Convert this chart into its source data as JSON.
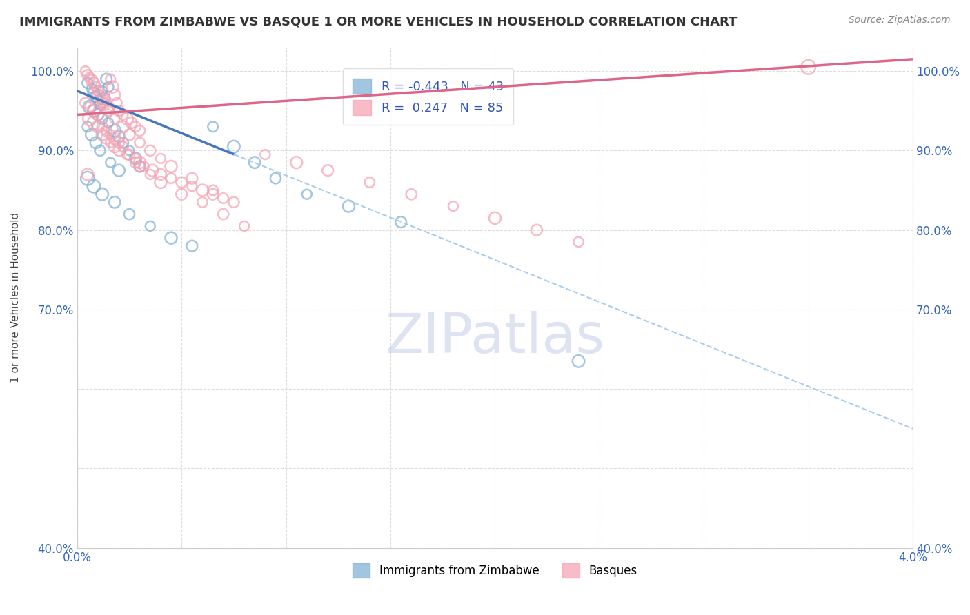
{
  "title": "IMMIGRANTS FROM ZIMBABWE VS BASQUE 1 OR MORE VEHICLES IN HOUSEHOLD CORRELATION CHART",
  "source": "Source: ZipAtlas.com",
  "ylabel": "1 or more Vehicles in Household",
  "xlim": [
    0.0,
    4.0
  ],
  "ylim": [
    40.0,
    103.0
  ],
  "xticks": [
    0.0,
    0.5,
    1.0,
    1.5,
    2.0,
    2.5,
    3.0,
    3.5,
    4.0
  ],
  "yticks": [
    40.0,
    50.0,
    60.0,
    70.0,
    80.0,
    90.0,
    100.0
  ],
  "xtick_labels": [
    "0.0%",
    "",
    "",
    "",
    "",
    "",
    "",
    "",
    "4.0%"
  ],
  "ytick_labels": [
    "40.0%",
    "",
    "",
    "70.0%",
    "80.0%",
    "90.0%",
    "100.0%"
  ],
  "blue_color": "#7BAFD4",
  "pink_color": "#F4A0B0",
  "blue_line_color": "#4477BB",
  "pink_line_color": "#DD6688",
  "dashed_color": "#AACCEE",
  "blue_label": "Immigrants from Zimbabwe",
  "pink_label": "Basques",
  "blue_R": -0.443,
  "blue_N": 43,
  "pink_R": 0.247,
  "pink_N": 85,
  "watermark": "ZIPatlas",
  "watermark_color": "#AABBDD",
  "blue_scatter_x": [
    0.05,
    0.07,
    0.08,
    0.09,
    0.1,
    0.11,
    0.12,
    0.13,
    0.14,
    0.15,
    0.06,
    0.08,
    0.1,
    0.12,
    0.15,
    0.18,
    0.2,
    0.22,
    0.25,
    0.28,
    0.3,
    0.05,
    0.07,
    0.09,
    0.11,
    0.16,
    0.2,
    0.05,
    0.08,
    0.12,
    0.18,
    0.25,
    0.35,
    0.45,
    0.55,
    0.65,
    0.75,
    0.85,
    0.95,
    1.1,
    1.3,
    1.55,
    2.4
  ],
  "blue_scatter_y": [
    98.5,
    97.8,
    97.2,
    96.8,
    96.3,
    95.8,
    97.5,
    96.5,
    99.0,
    98.0,
    95.5,
    95.0,
    94.5,
    94.0,
    93.5,
    92.5,
    91.8,
    91.0,
    90.0,
    89.0,
    88.0,
    93.0,
    92.0,
    91.0,
    90.0,
    88.5,
    87.5,
    86.5,
    85.5,
    84.5,
    83.5,
    82.0,
    80.5,
    79.0,
    78.0,
    93.0,
    90.5,
    88.5,
    86.5,
    84.5,
    83.0,
    81.0,
    63.5
  ],
  "blue_scatter_sizes": [
    120,
    100,
    150,
    130,
    110,
    120,
    100,
    150,
    130,
    110,
    180,
    160,
    140,
    120,
    100,
    160,
    140,
    120,
    100,
    150,
    130,
    110,
    160,
    140,
    120,
    100,
    150,
    200,
    180,
    160,
    140,
    120,
    100,
    150,
    130,
    110,
    160,
    140,
    120,
    100,
    150,
    130,
    160
  ],
  "pink_scatter_x": [
    0.04,
    0.05,
    0.06,
    0.07,
    0.08,
    0.09,
    0.1,
    0.11,
    0.12,
    0.13,
    0.14,
    0.15,
    0.16,
    0.17,
    0.18,
    0.19,
    0.2,
    0.22,
    0.24,
    0.26,
    0.28,
    0.3,
    0.06,
    0.08,
    0.1,
    0.12,
    0.14,
    0.16,
    0.18,
    0.2,
    0.24,
    0.28,
    0.32,
    0.36,
    0.4,
    0.45,
    0.5,
    0.55,
    0.6,
    0.65,
    0.7,
    0.04,
    0.06,
    0.08,
    0.1,
    0.12,
    0.14,
    0.16,
    0.18,
    0.2,
    0.22,
    0.25,
    0.28,
    0.3,
    0.1,
    0.12,
    0.15,
    0.18,
    0.22,
    0.25,
    0.3,
    0.35,
    0.4,
    0.45,
    0.55,
    0.65,
    0.75,
    0.9,
    1.05,
    1.2,
    1.4,
    1.6,
    1.8,
    2.0,
    2.2,
    2.4,
    0.3,
    0.35,
    0.4,
    0.5,
    0.6,
    0.7,
    0.8,
    3.5,
    0.05
  ],
  "pink_scatter_y": [
    100.0,
    99.5,
    99.2,
    98.8,
    98.5,
    98.0,
    97.5,
    97.0,
    96.5,
    96.0,
    95.8,
    95.5,
    99.0,
    98.0,
    97.0,
    96.0,
    95.0,
    94.5,
    94.0,
    93.5,
    93.0,
    92.5,
    94.0,
    93.5,
    93.0,
    92.0,
    91.5,
    91.0,
    90.5,
    90.0,
    89.5,
    88.5,
    88.0,
    87.5,
    87.0,
    86.5,
    86.0,
    85.5,
    85.0,
    84.5,
    84.0,
    96.0,
    95.5,
    95.0,
    94.5,
    93.0,
    92.5,
    92.0,
    91.5,
    91.0,
    90.5,
    89.5,
    89.0,
    88.5,
    97.0,
    96.0,
    95.0,
    94.0,
    93.0,
    92.0,
    91.0,
    90.0,
    89.0,
    88.0,
    86.5,
    85.0,
    83.5,
    89.5,
    88.5,
    87.5,
    86.0,
    84.5,
    83.0,
    81.5,
    80.0,
    78.5,
    88.0,
    87.0,
    86.0,
    84.5,
    83.5,
    82.0,
    80.5,
    100.5,
    87.0
  ],
  "pink_scatter_sizes": [
    100,
    120,
    100,
    150,
    130,
    110,
    120,
    100,
    150,
    130,
    110,
    120,
    100,
    150,
    130,
    110,
    120,
    100,
    150,
    130,
    110,
    120,
    200,
    180,
    160,
    140,
    120,
    100,
    150,
    130,
    110,
    120,
    100,
    150,
    130,
    110,
    120,
    100,
    150,
    130,
    110,
    120,
    100,
    150,
    130,
    110,
    120,
    100,
    150,
    130,
    110,
    120,
    100,
    150,
    130,
    110,
    120,
    100,
    150,
    130,
    110,
    120,
    100,
    150,
    130,
    110,
    120,
    100,
    150,
    130,
    110,
    120,
    100,
    150,
    130,
    110,
    120,
    100,
    150,
    130,
    110,
    120,
    100,
    220,
    150
  ],
  "blue_trend_x0": 0.0,
  "blue_trend_y0": 97.5,
  "blue_trend_x1": 4.0,
  "blue_trend_y1": 55.0,
  "blue_solid_end": 0.75,
  "pink_trend_x0": 0.0,
  "pink_trend_y0": 94.5,
  "pink_trend_x1": 4.0,
  "pink_trend_y1": 101.5
}
